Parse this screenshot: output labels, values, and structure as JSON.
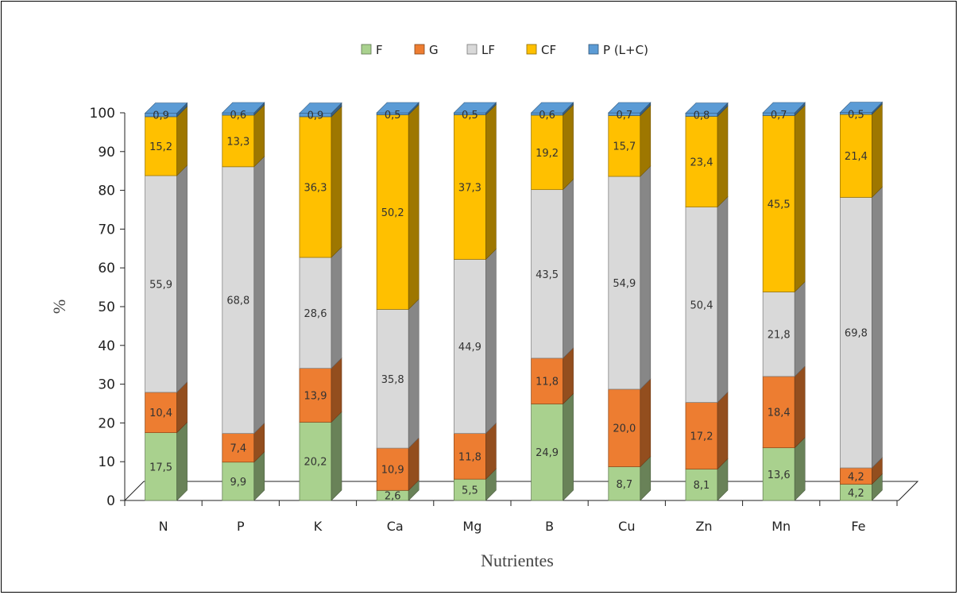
{
  "chart_data": {
    "type": "bar",
    "stacked": true,
    "three_d": true,
    "xlabel": "Nutrientes",
    "ylabel": "%",
    "ylim": [
      0,
      100
    ],
    "yticks": [
      0,
      10,
      20,
      30,
      40,
      50,
      60,
      70,
      80,
      90,
      100
    ],
    "legend_position": "top",
    "categories": [
      "N",
      "P",
      "K",
      "Ca",
      "Mg",
      "B",
      "Cu",
      "Zn",
      "Mn",
      "Fe"
    ],
    "series": [
      {
        "name": "F",
        "color": "#A9D18E",
        "values": [
          17.5,
          9.9,
          20.2,
          2.6,
          5.5,
          24.9,
          8.7,
          8.1,
          13.6,
          4.2
        ]
      },
      {
        "name": "G",
        "color": "#ED7D31",
        "values": [
          10.4,
          7.4,
          13.9,
          10.9,
          11.8,
          11.8,
          20.0,
          17.2,
          18.4,
          4.2
        ]
      },
      {
        "name": "LF",
        "color": "#D9D9D9",
        "values": [
          55.9,
          68.8,
          28.6,
          35.8,
          44.9,
          43.5,
          54.9,
          50.4,
          21.8,
          69.8
        ]
      },
      {
        "name": "CF",
        "color": "#FFC000",
        "values": [
          15.2,
          13.3,
          36.3,
          50.2,
          37.3,
          19.2,
          15.7,
          23.4,
          45.5,
          21.4
        ]
      },
      {
        "name": "P (L+C)",
        "color": "#5B9BD5",
        "values": [
          0.9,
          0.6,
          0.9,
          0.5,
          0.5,
          0.6,
          0.7,
          0.8,
          0.7,
          0.5
        ]
      }
    ],
    "labels": [
      [
        "17,5",
        "9,9",
        "20,2",
        "2,6",
        "5,5",
        "24,9",
        "8,7",
        "8,1",
        "13,6",
        "4,2"
      ],
      [
        "10,4",
        "7,4",
        "13,9",
        "10,9",
        "11,8",
        "11,8",
        "20,0",
        "17,2",
        "18,4",
        "4,2"
      ],
      [
        "55,9",
        "68,8",
        "28,6",
        "35,8",
        "44,9",
        "43,5",
        "54,9",
        "50,4",
        "21,8",
        "69,8"
      ],
      [
        "15,2",
        "13,3",
        "36,3",
        "50,2",
        "37,3",
        "19,2",
        "15,7",
        "23,4",
        "45,5",
        "21,4"
      ],
      [
        "0,9",
        "0,6",
        "0,9",
        "0,5",
        "0,5",
        "0,6",
        "0,7",
        "0,8",
        "0,7",
        "0,5"
      ]
    ]
  }
}
